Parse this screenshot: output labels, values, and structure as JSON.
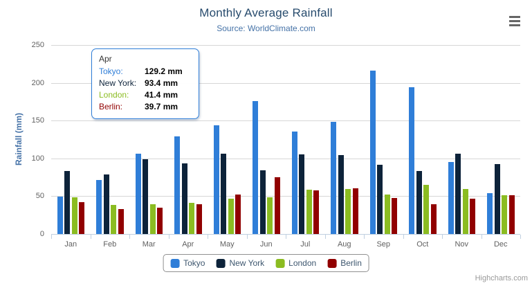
{
  "chart_data": {
    "type": "bar",
    "title": "Monthly Average Rainfall",
    "subtitle": "Source: WorldClimate.com",
    "xlabel": "",
    "ylabel": "Rainfall (mm)",
    "ylim": [
      0,
      250
    ],
    "yticks": [
      0,
      50,
      100,
      150,
      200,
      250
    ],
    "grid": true,
    "legend_position": "bottom",
    "categories": [
      "Jan",
      "Feb",
      "Mar",
      "Apr",
      "May",
      "Jun",
      "Jul",
      "Aug",
      "Sep",
      "Oct",
      "Nov",
      "Dec"
    ],
    "series": [
      {
        "name": "Tokyo",
        "color": "#2f7ed8",
        "values": [
          49.9,
          71.5,
          106.4,
          129.2,
          144.0,
          176.0,
          135.6,
          148.5,
          216.4,
          194.1,
          95.6,
          54.4
        ]
      },
      {
        "name": "New York",
        "color": "#0d233a",
        "values": [
          83.6,
          78.8,
          98.5,
          93.4,
          106.0,
          84.5,
          105.0,
          104.3,
          91.2,
          83.5,
          106.6,
          92.3
        ]
      },
      {
        "name": "London",
        "color": "#8bbc21",
        "values": [
          48.9,
          38.8,
          39.3,
          41.4,
          47.0,
          48.3,
          59.0,
          59.6,
          52.4,
          65.2,
          59.3,
          51.2
        ]
      },
      {
        "name": "Berlin",
        "color": "#910000",
        "values": [
          42.4,
          33.2,
          34.5,
          39.7,
          52.6,
          75.5,
          57.4,
          60.4,
          47.6,
          39.1,
          46.8,
          51.1
        ]
      }
    ]
  },
  "tooltip": {
    "header": "Apr",
    "rows": [
      {
        "name": "Tokyo:",
        "color": "#2f7ed8",
        "value": "129.2 mm"
      },
      {
        "name": "New York:",
        "color": "#0d233a",
        "value": "93.4 mm"
      },
      {
        "name": "London:",
        "color": "#8bbc21",
        "value": "41.4 mm"
      },
      {
        "name": "Berlin:",
        "color": "#910000",
        "value": "39.7 mm"
      }
    ]
  },
  "menu": {
    "icon": "hamburger-icon"
  },
  "credits": {
    "label": "Highcharts.com"
  },
  "colors": {
    "title": "#274b6d",
    "subtitle": "#4572a7",
    "yaxis_title": "#4572a7",
    "axis_label": "#606060",
    "grid_line": "#D6D6D6",
    "axis_line": "#C0D0E0",
    "legend_text": "#3E576F",
    "legend_border": "#909090",
    "tooltip_border": "#2f7ed8",
    "menu_icon": "#666666",
    "credits_text": "#999999"
  }
}
